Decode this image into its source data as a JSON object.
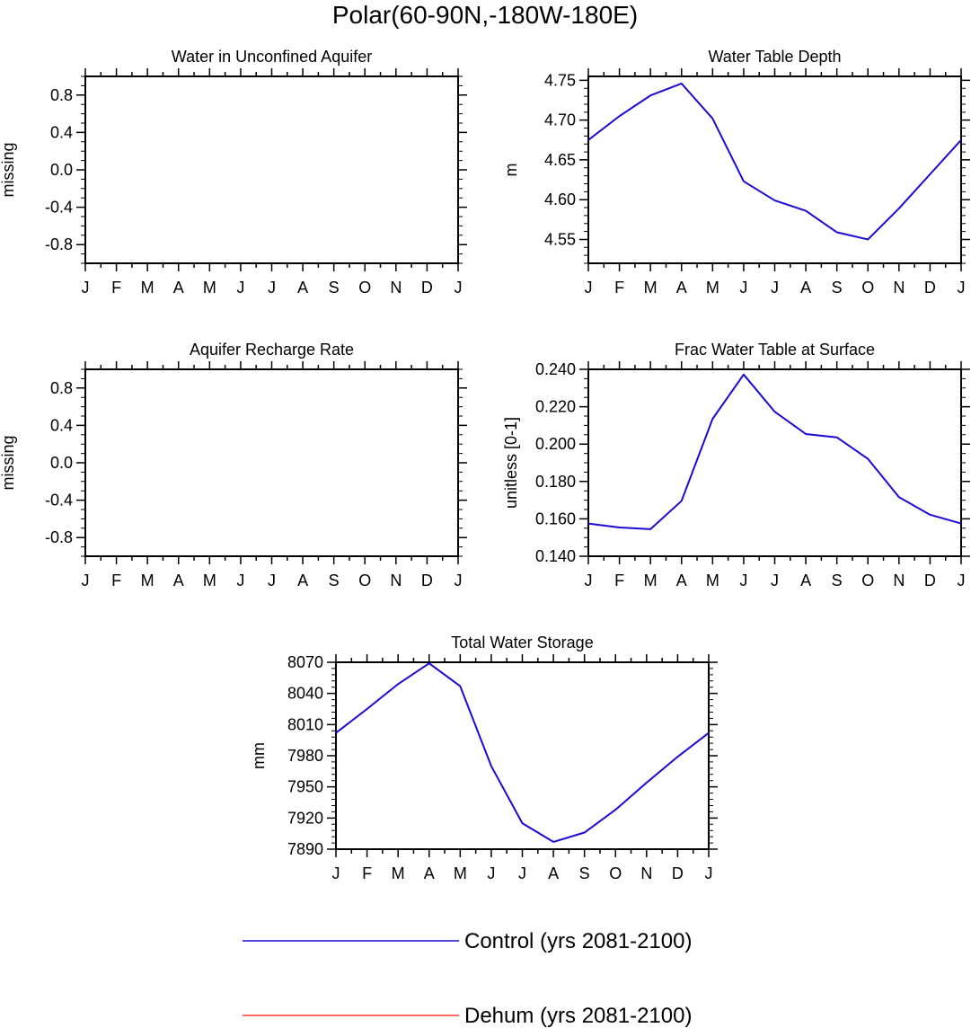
{
  "title": "Polar(60-90N,-180W-180E)",
  "colors": {
    "control": "#1a0ad6",
    "dehum": "#ff3b2f"
  },
  "legend": [
    {
      "key": "control",
      "label": "Control (yrs 2081-2100)"
    },
    {
      "key": "dehum",
      "label": "Dehum (yrs 2081-2100)"
    }
  ],
  "chart_data": [
    {
      "type": "line",
      "title": "Water in Unconfined Aquifer",
      "ylabel": "missing",
      "categories": [
        "J",
        "F",
        "M",
        "A",
        "M",
        "J",
        "J",
        "A",
        "S",
        "O",
        "N",
        "D",
        "J"
      ],
      "ylim": [
        -1.0,
        1.0
      ],
      "yticks": [
        -0.8,
        -0.4,
        0.0,
        0.4,
        0.8
      ],
      "ytick_labels": [
        "-0.8",
        "-0.4",
        "0.0",
        "0.4",
        "0.8"
      ],
      "yminor_step": 0.1,
      "series": []
    },
    {
      "type": "line",
      "title": "Water Table Depth",
      "ylabel": "m",
      "categories": [
        "J",
        "F",
        "M",
        "A",
        "M",
        "J",
        "J",
        "A",
        "S",
        "O",
        "N",
        "D",
        "J"
      ],
      "ylim": [
        4.52,
        4.755
      ],
      "yticks": [
        4.55,
        4.6,
        4.65,
        4.7,
        4.75
      ],
      "ytick_labels": [
        "4.55",
        "4.60",
        "4.65",
        "4.70",
        "4.75"
      ],
      "yminor_step": 0.01,
      "series": [
        {
          "key": "control",
          "values": [
            4.675,
            4.705,
            4.731,
            4.746,
            4.702,
            4.623,
            4.599,
            4.586,
            4.559,
            4.55,
            4.589,
            4.632,
            4.675
          ]
        }
      ]
    },
    {
      "type": "line",
      "title": "Aquifer Recharge Rate",
      "ylabel": "missing",
      "categories": [
        "J",
        "F",
        "M",
        "A",
        "M",
        "J",
        "J",
        "A",
        "S",
        "O",
        "N",
        "D",
        "J"
      ],
      "ylim": [
        -1.0,
        1.0
      ],
      "yticks": [
        -0.8,
        -0.4,
        0.0,
        0.4,
        0.8
      ],
      "ytick_labels": [
        "-0.8",
        "-0.4",
        "0.0",
        "0.4",
        "0.8"
      ],
      "yminor_step": 0.1,
      "series": []
    },
    {
      "type": "line",
      "title": "Frac Water Table at Surface",
      "ylabel": "unitless [0-1]",
      "categories": [
        "J",
        "F",
        "M",
        "A",
        "M",
        "J",
        "J",
        "A",
        "S",
        "O",
        "N",
        "D",
        "J"
      ],
      "ylim": [
        0.14,
        0.24
      ],
      "yticks": [
        0.14,
        0.16,
        0.18,
        0.2,
        0.22,
        0.24
      ],
      "ytick_labels": [
        "0.140",
        "0.160",
        "0.180",
        "0.200",
        "0.220",
        "0.240"
      ],
      "yminor_step": 0.005,
      "series": [
        {
          "key": "control",
          "values": [
            0.1575,
            0.1554,
            0.1545,
            0.1696,
            0.2135,
            0.2372,
            0.2173,
            0.2054,
            0.2036,
            0.1921,
            0.1716,
            0.1622,
            0.1575
          ]
        }
      ]
    },
    {
      "type": "line",
      "title": "Total Water Storage",
      "ylabel": "mm",
      "categories": [
        "J",
        "F",
        "M",
        "A",
        "M",
        "J",
        "J",
        "A",
        "S",
        "O",
        "N",
        "D",
        "J"
      ],
      "ylim": [
        7890,
        8070
      ],
      "yticks": [
        7890,
        7920,
        7950,
        7980,
        8010,
        8040,
        8070
      ],
      "ytick_labels": [
        "7890",
        "7920",
        "7950",
        "7980",
        "8010",
        "8040",
        "8070"
      ],
      "yminor_step": 6,
      "series": [
        {
          "key": "control",
          "values": [
            8002,
            8025,
            8049,
            8069,
            8047,
            7970,
            7915,
            7897,
            7906,
            7928,
            7954,
            7979,
            8002
          ]
        }
      ]
    }
  ]
}
